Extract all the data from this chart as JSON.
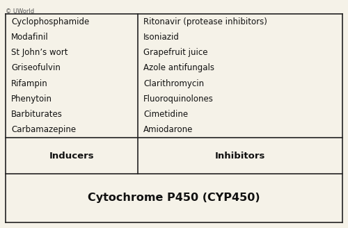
{
  "title": "Cytochrome P450 (CYP450)",
  "col1_header": "Inducers",
  "col2_header": "Inhibitors",
  "inducers": [
    "Carbamazepine",
    "Barbiturates",
    "Phenytoin",
    "Rifampin",
    "Griseofulvin",
    "St John’s wort",
    "Modafinil",
    "Cyclophosphamide"
  ],
  "inhibitors": [
    "Amiodarone",
    "Cimetidine",
    "Fluoroquinolones",
    "Clarithromycin",
    "Azole antifungals",
    "Grapefruit juice",
    "Isoniazid",
    "Ritonavir (protease inhibitors)"
  ],
  "footer": "© UWorld",
  "bg_color": "#f5f2e8",
  "border_color": "#222222",
  "title_fontsize": 11.5,
  "header_fontsize": 9.5,
  "body_fontsize": 8.5,
  "footer_fontsize": 6
}
